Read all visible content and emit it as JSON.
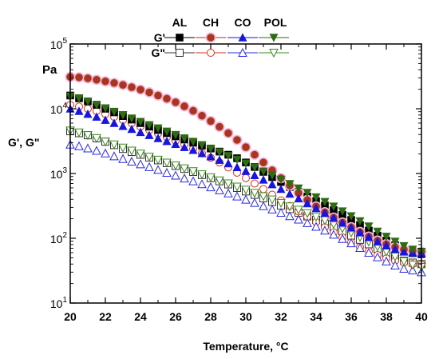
{
  "chart_data": {
    "type": "scatter",
    "xlabel": "Temperature, °C",
    "ylabel": "G', G\"",
    "yunit": "Pa",
    "xlim": [
      20,
      40
    ],
    "ylim": [
      10,
      100000
    ],
    "yscale": "log",
    "x_ticks": [
      "20",
      "22",
      "24",
      "26",
      "28",
      "30",
      "32",
      "34",
      "36",
      "38",
      "40"
    ],
    "y_ticks": [
      {
        "base": "10",
        "exp": "1",
        "value": 10
      },
      {
        "base": "10",
        "exp": "2",
        "value": 100
      },
      {
        "base": "10",
        "exp": "3",
        "value": 1000
      },
      {
        "base": "10",
        "exp": "4",
        "value": 10000
      },
      {
        "base": "10",
        "exp": "5",
        "value": 100000
      }
    ],
    "legend": {
      "position": "top",
      "columns": [
        "AL",
        "CH",
        "CO",
        "POL"
      ],
      "rows": [
        "G'",
        "G\""
      ]
    },
    "x": [
      20,
      20.5,
      21,
      21.5,
      22,
      22.5,
      23,
      23.5,
      24,
      24.5,
      25,
      25.5,
      26,
      26.5,
      27,
      27.5,
      28,
      28.5,
      29,
      29.5,
      30,
      30.5,
      31,
      31.5,
      32,
      32.5,
      33,
      33.5,
      34,
      34.5,
      35,
      35.5,
      36,
      36.5,
      37,
      37.5,
      38,
      38.5,
      39,
      39.5,
      40
    ],
    "series": [
      {
        "name": "G'",
        "group": "AL",
        "modulus": "G'",
        "marker": "square",
        "filled": true,
        "color": "#000000",
        "values": [
          16000,
          14500,
          13000,
          11500,
          10000,
          8800,
          7700,
          6800,
          6000,
          5300,
          4700,
          4200,
          3750,
          3350,
          3000,
          2700,
          2430,
          2180,
          1950,
          1720,
          1480,
          1260,
          1060,
          880,
          740,
          620,
          520,
          440,
          375,
          320,
          272,
          230,
          192,
          160,
          132,
          110,
          92,
          78,
          65,
          59,
          57
        ]
      },
      {
        "name": "G\"",
        "group": "AL",
        "modulus": "G\"",
        "marker": "square",
        "filled": false,
        "color": "#333333",
        "values": [
          4500,
          4200,
          3900,
          3500,
          3100,
          2750,
          2400,
          2150,
          1950,
          1770,
          1600,
          1450,
          1310,
          1180,
          1060,
          950,
          850,
          760,
          680,
          600,
          530,
          470,
          415,
          365,
          320,
          282,
          248,
          218,
          192,
          168,
          147,
          128,
          110,
          95,
          81,
          69,
          59,
          51,
          45,
          42,
          40
        ]
      },
      {
        "name": "G'",
        "group": "CH",
        "modulus": "G'",
        "marker": "circle",
        "filled": true,
        "color": "#a8361e",
        "values": [
          31000,
          30500,
          29500,
          28000,
          26500,
          25000,
          23300,
          21500,
          19700,
          17900,
          16000,
          14300,
          12600,
          10900,
          9300,
          7800,
          6450,
          5250,
          4200,
          3300,
          2550,
          1950,
          1480,
          1120,
          850,
          650,
          500,
          390,
          310,
          252,
          208,
          175,
          148,
          125,
          106,
          92,
          81,
          73,
          67,
          64,
          62
        ]
      },
      {
        "name": "G\"",
        "group": "CH",
        "modulus": "G\"",
        "marker": "circle",
        "filled": false,
        "color": "#d9301e",
        "values": [
          11500,
          10800,
          10000,
          9200,
          8300,
          7500,
          6700,
          6000,
          5300,
          4700,
          4150,
          3650,
          3200,
          2800,
          2400,
          2050,
          1750,
          1480,
          1240,
          1030,
          850,
          700,
          575,
          470,
          385,
          315,
          260,
          215,
          178,
          148,
          123,
          103,
          86,
          73,
          63,
          55,
          49,
          45,
          42,
          40,
          39
        ]
      },
      {
        "name": "G'",
        "group": "CO",
        "modulus": "G'",
        "marker": "triangle-up",
        "filled": true,
        "color": "#1616e0",
        "values": [
          10000,
          9200,
          8300,
          7500,
          6700,
          6000,
          5400,
          4850,
          4350,
          3900,
          3500,
          3150,
          2850,
          2550,
          2300,
          2050,
          1830,
          1620,
          1430,
          1250,
          1090,
          940,
          800,
          680,
          575,
          485,
          410,
          345,
          290,
          245,
          206,
          173,
          146,
          123,
          104,
          89,
          77,
          68,
          62,
          60,
          59
        ]
      },
      {
        "name": "G\"",
        "group": "CO",
        "modulus": "G\"",
        "marker": "triangle-up",
        "filled": false,
        "color": "#2a2ae0",
        "values": [
          2800,
          2650,
          2450,
          2250,
          2050,
          1850,
          1680,
          1530,
          1390,
          1260,
          1140,
          1030,
          930,
          840,
          760,
          685,
          615,
          552,
          495,
          443,
          396,
          353,
          314,
          279,
          248,
          220,
          195,
          172,
          151,
          132,
          114,
          98,
          84,
          71,
          60,
          51,
          44,
          38,
          34,
          32,
          30
        ]
      },
      {
        "name": "G'",
        "group": "POL",
        "modulus": "G'",
        "marker": "triangle-down",
        "filled": true,
        "color": "#2e6b12",
        "values": [
          15500,
          14500,
          13000,
          11500,
          10200,
          9000,
          8000,
          7100,
          6300,
          5600,
          5000,
          4450,
          3950,
          3500,
          3100,
          2750,
          2420,
          2130,
          1870,
          1640,
          1430,
          1250,
          1080,
          935,
          805,
          690,
          590,
          505,
          430,
          365,
          310,
          262,
          220,
          184,
          153,
          127,
          106,
          89,
          76,
          67,
          62
        ]
      },
      {
        "name": "G\"",
        "group": "POL",
        "modulus": "G\"",
        "marker": "triangle-down",
        "filled": false,
        "color": "#3c8a1c",
        "values": [
          4600,
          4300,
          3900,
          3500,
          3100,
          2800,
          2500,
          2250,
          2020,
          1810,
          1630,
          1470,
          1330,
          1200,
          1080,
          970,
          870,
          780,
          700,
          625,
          560,
          500,
          445,
          395,
          350,
          310,
          275,
          243,
          214,
          188,
          164,
          142,
          122,
          104,
          88,
          74,
          62,
          52,
          44,
          39,
          36
        ]
      }
    ]
  }
}
